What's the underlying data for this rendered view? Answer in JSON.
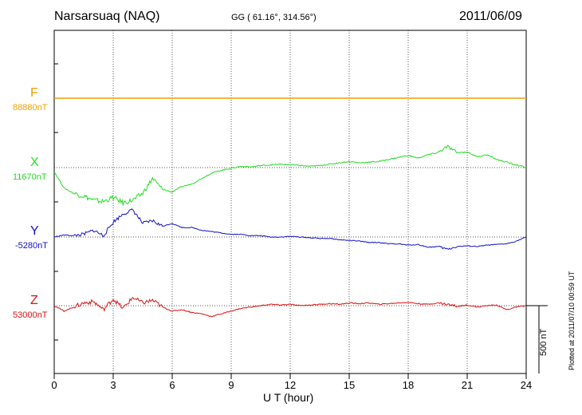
{
  "header": {
    "station": "Narsarsuaq (NAQ)",
    "coords": "GG ( 61.16°, 314.56°)",
    "date": "2011/06/09"
  },
  "footer": {
    "plotted": "Plotted at 2011/07/10 00:59 UT",
    "scale": "500 nT"
  },
  "colors": {
    "F": "#f0a000",
    "X": "#22dd22",
    "Y": "#1111cc",
    "Z": "#dd1111"
  },
  "chart_data": {
    "type": "line",
    "title": "Narsarsuaq (NAQ)",
    "xlabel": "U T (hour)",
    "ylabel": "",
    "xlim": [
      0,
      24
    ],
    "x_ticks": [
      "0",
      "3",
      "6",
      "9",
      "12",
      "15",
      "18",
      "21",
      "24"
    ],
    "grid": true,
    "scale_bar_nT": 500,
    "series": [
      {
        "name": "F",
        "base_label": "88880nT",
        "offset_nT": 0,
        "x": [
          0,
          24
        ],
        "values": [
          0,
          0
        ]
      },
      {
        "name": "X",
        "base_label": "11670nT",
        "x": [
          0,
          0.5,
          1,
          1.5,
          2,
          2.5,
          3,
          3.5,
          4,
          4.5,
          5,
          5.5,
          6,
          6.5,
          7,
          7.5,
          8,
          8.5,
          9,
          9.5,
          10,
          10.5,
          11,
          11.5,
          12,
          12.5,
          13,
          13.5,
          14,
          14.5,
          15,
          15.5,
          16,
          16.5,
          17,
          17.5,
          18,
          18.5,
          19,
          19.5,
          20,
          20.5,
          21,
          21.5,
          22,
          22.5,
          23,
          23.5,
          24
        ],
        "values": [
          -30,
          -150,
          -190,
          -210,
          -240,
          -250,
          -220,
          -260,
          -240,
          -190,
          -80,
          -160,
          -180,
          -140,
          -120,
          -80,
          -40,
          -20,
          -5,
          10,
          5,
          15,
          20,
          25,
          20,
          15,
          10,
          15,
          25,
          35,
          45,
          35,
          40,
          45,
          60,
          75,
          90,
          70,
          95,
          110,
          155,
          110,
          115,
          80,
          95,
          60,
          40,
          20,
          0
        ]
      },
      {
        "name": "Y",
        "base_label": "-5280nT",
        "x": [
          0,
          0.5,
          1,
          1.5,
          2,
          2.5,
          3,
          3.5,
          4,
          4.5,
          5,
          5.5,
          6,
          6.5,
          7,
          7.5,
          8,
          8.5,
          9,
          9.5,
          10,
          10.5,
          11,
          11.5,
          12,
          12.5,
          13,
          13.5,
          14,
          14.5,
          15,
          15.5,
          16,
          16.5,
          17,
          17.5,
          18,
          18.5,
          19,
          19.5,
          20,
          20.5,
          21,
          21.5,
          22,
          22.5,
          23,
          23.5,
          24
        ],
        "values": [
          0,
          15,
          10,
          20,
          50,
          10,
          110,
          170,
          200,
          100,
          120,
          80,
          100,
          70,
          70,
          50,
          40,
          30,
          20,
          20,
          10,
          10,
          0,
          0,
          5,
          0,
          -5,
          -10,
          -10,
          -20,
          -25,
          -30,
          -40,
          -40,
          -50,
          -50,
          -60,
          -55,
          -75,
          -70,
          -90,
          -70,
          -65,
          -70,
          -60,
          -55,
          -50,
          -30,
          0
        ]
      },
      {
        "name": "Z",
        "base_label": "53000nT",
        "x": [
          0,
          0.5,
          1,
          1.5,
          2,
          2.5,
          3,
          3.5,
          4,
          4.5,
          5,
          5.5,
          6,
          6.5,
          7,
          7.5,
          8,
          8.5,
          9,
          9.5,
          10,
          10.5,
          11,
          11.5,
          12,
          12.5,
          13,
          13.5,
          14,
          14.5,
          15,
          15.5,
          16,
          16.5,
          17,
          17.5,
          18,
          18.5,
          19,
          19.5,
          20,
          20.5,
          21,
          21.5,
          22,
          22.5,
          23,
          23.5,
          24
        ],
        "values": [
          0,
          -40,
          -10,
          20,
          30,
          -30,
          50,
          -20,
          60,
          20,
          40,
          -10,
          -40,
          -30,
          -50,
          -60,
          -80,
          -60,
          -40,
          -20,
          -10,
          0,
          10,
          5,
          10,
          0,
          5,
          10,
          15,
          10,
          20,
          15,
          20,
          10,
          15,
          20,
          25,
          15,
          10,
          20,
          10,
          -5,
          5,
          -10,
          0,
          5,
          -30,
          -10,
          0
        ]
      }
    ]
  }
}
